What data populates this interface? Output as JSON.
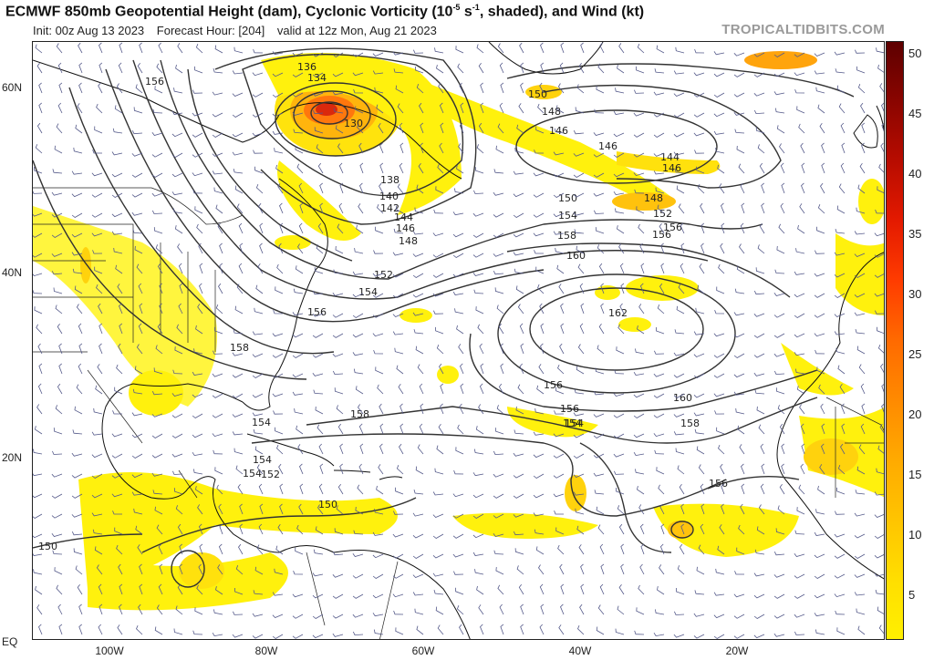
{
  "header": {
    "title_prefix": "ECMWF 850mb Geopotential Height (dam), Cyclonic Vorticity (10",
    "title_sup": "-5",
    "title_mid": " s",
    "title_sup2": "-1",
    "title_suffix": ", shaded), and Wind (kt)",
    "init": "Init: 00z Aug 13 2023",
    "forecast_hour": "Forecast Hour: [204]",
    "valid": "valid at 12z Mon, Aug 21 2023",
    "brand": "TROPICALTIDBITS.COM"
  },
  "axes": {
    "lat_labels": [
      "60N",
      "40N",
      "20N",
      "EQ"
    ],
    "lon_labels": [
      "100W",
      "80W",
      "60W",
      "40W",
      "20W"
    ]
  },
  "colorbar": {
    "labels": [
      "50",
      "45",
      "40",
      "35",
      "30",
      "25",
      "20",
      "15",
      "10",
      "5"
    ],
    "colors": [
      "#fff000",
      "#ffde00",
      "#ffc400",
      "#ffaa00",
      "#ff8a00",
      "#ff6a00",
      "#ff3c00",
      "#e41a00",
      "#b80c00",
      "#8a0500",
      "#5e0000"
    ]
  },
  "contour_labels": [
    "136",
    "134",
    "130",
    "156",
    "150",
    "148",
    "146",
    "146",
    "144",
    "146",
    "148",
    "152",
    "156",
    "138",
    "140",
    "142",
    "144",
    "146",
    "148",
    "150",
    "154",
    "158",
    "160",
    "152",
    "154",
    "156",
    "162",
    "158",
    "160",
    "156",
    "158",
    "156",
    "154",
    "158",
    "154",
    "156",
    "154",
    "152",
    "150",
    "150",
    "154",
    "154",
    "156"
  ]
}
